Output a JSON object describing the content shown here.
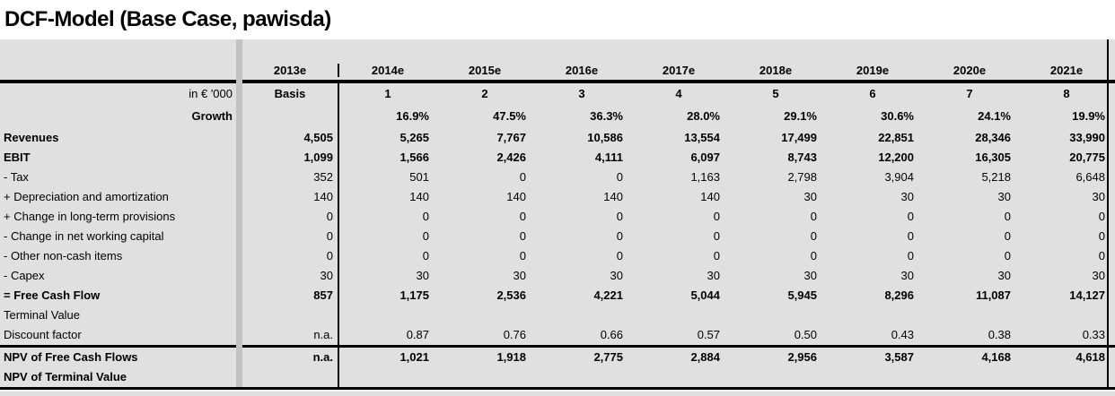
{
  "chart_data": {
    "type": "table",
    "title": "DCF-Model (Base Case, pawisda)",
    "columns": [
      "2013e",
      "2014e",
      "2015e",
      "2016e",
      "2017e",
      "2018e",
      "2019e",
      "2020e",
      "2021e"
    ],
    "unit_row": {
      "label": "in € '000",
      "values": [
        "Basis",
        "1",
        "2",
        "3",
        "4",
        "5",
        "6",
        "7",
        "8"
      ]
    },
    "growth_row": {
      "label": "Growth",
      "values": [
        "",
        "16.9%",
        "47.5%",
        "36.3%",
        "28.0%",
        "29.1%",
        "30.6%",
        "24.1%",
        "19.9%"
      ]
    },
    "rows": [
      {
        "label": "Revenues",
        "bold": true,
        "values": [
          "4,505",
          "5,265",
          "7,767",
          "10,586",
          "13,554",
          "17,499",
          "22,851",
          "28,346",
          "33,990"
        ]
      },
      {
        "label": "EBIT",
        "bold": true,
        "values": [
          "1,099",
          "1,566",
          "2,426",
          "4,111",
          "6,097",
          "8,743",
          "12,200",
          "16,305",
          "20,775"
        ]
      },
      {
        "label": "- Tax",
        "bold": false,
        "values": [
          "352",
          "501",
          "0",
          "0",
          "1,163",
          "2,798",
          "3,904",
          "5,218",
          "6,648"
        ]
      },
      {
        "label": "+ Depreciation and amortization",
        "bold": false,
        "values": [
          "140",
          "140",
          "140",
          "140",
          "140",
          "30",
          "30",
          "30",
          "30"
        ]
      },
      {
        "label": "+ Change in long-term provisions",
        "bold": false,
        "values": [
          "0",
          "0",
          "0",
          "0",
          "0",
          "0",
          "0",
          "0",
          "0"
        ]
      },
      {
        "label": "- Change in net working capital",
        "bold": false,
        "values": [
          "0",
          "0",
          "0",
          "0",
          "0",
          "0",
          "0",
          "0",
          "0"
        ]
      },
      {
        "label": "- Other non-cash items",
        "bold": false,
        "values": [
          "0",
          "0",
          "0",
          "0",
          "0",
          "0",
          "0",
          "0",
          "0"
        ]
      },
      {
        "label": "- Capex",
        "bold": false,
        "values": [
          "30",
          "30",
          "30",
          "30",
          "30",
          "30",
          "30",
          "30",
          "30"
        ]
      },
      {
        "label": "= Free Cash Flow",
        "bold": true,
        "values": [
          "857",
          "1,175",
          "2,536",
          "4,221",
          "5,044",
          "5,945",
          "8,296",
          "11,087",
          "14,127"
        ]
      },
      {
        "label": "Terminal Value",
        "bold": false,
        "values": [
          "",
          "",
          "",
          "",
          "",
          "",
          "",
          "",
          ""
        ]
      },
      {
        "label": "Discount factor",
        "bold": false,
        "values": [
          "n.a.",
          "0.87",
          "0.76",
          "0.66",
          "0.57",
          "0.50",
          "0.43",
          "0.38",
          "0.33"
        ]
      }
    ],
    "footer_rows": [
      {
        "label": "NPV of Free Cash Flows",
        "bold": true,
        "values": [
          "n.a.",
          "1,021",
          "1,918",
          "2,775",
          "2,884",
          "2,956",
          "3,587",
          "4,168",
          "4,618"
        ]
      },
      {
        "label": "NPV of Terminal Value",
        "bold": true,
        "values": [
          "",
          "",
          "",
          "",
          "",
          "",
          "",
          "",
          ""
        ]
      }
    ],
    "layout": {
      "grid": "off",
      "value_alignment": "right",
      "header_alignment": "center"
    }
  },
  "colors": {
    "table_background": "#e0e0e0",
    "divider_band": "#c3c3c3",
    "border": "#000000",
    "text": "#000000",
    "page_background": "#ffffff"
  }
}
